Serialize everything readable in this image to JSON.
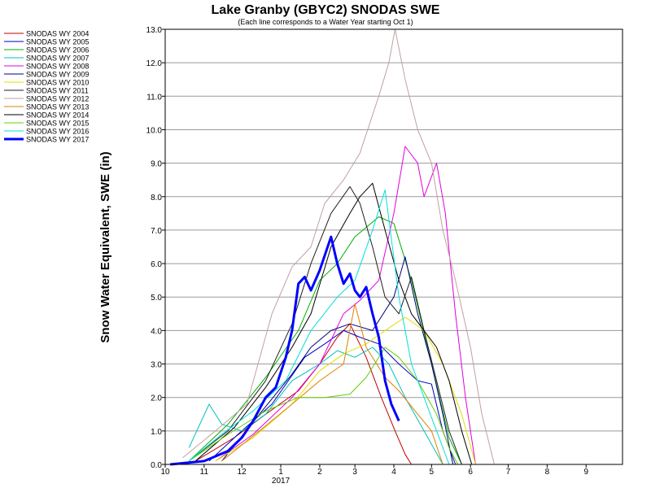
{
  "chart_data": {
    "type": "line",
    "title": "Lake Granby (GBYC2) SNODAS SWE",
    "subtitle": "(Each line corresponds to a Water Year starting Oct 1)",
    "ylabel": "Snow Water Equivalent, SWE (in)",
    "xlabel": "",
    "ylim": [
      0,
      13
    ],
    "yticks": [
      0,
      1,
      2,
      3,
      4,
      5,
      6,
      7,
      8,
      9,
      10,
      11,
      12,
      13
    ],
    "ytick_labels": [
      "0.0",
      "1.0",
      "2.0",
      "3.0",
      "4.0",
      "5.0",
      "6.0",
      "7.0",
      "8.0",
      "9.0",
      "10.0",
      "11.0",
      "12.0",
      "13.0"
    ],
    "xlim": [
      "2016-10-01",
      "2017-09-30"
    ],
    "xticks": [
      {
        "date": "2016-10-01",
        "label": "10"
      },
      {
        "date": "2016-11-01",
        "label": "11"
      },
      {
        "date": "2016-12-01",
        "label": "12"
      },
      {
        "date": "2017-01-01",
        "label": "1"
      },
      {
        "date": "2017-02-01",
        "label": "2"
      },
      {
        "date": "2017-03-01",
        "label": "3"
      },
      {
        "date": "2017-04-01",
        "label": "4"
      },
      {
        "date": "2017-05-01",
        "label": "5"
      },
      {
        "date": "2017-06-01",
        "label": "6"
      },
      {
        "date": "2017-07-01",
        "label": "7"
      },
      {
        "date": "2017-08-01",
        "label": "8"
      },
      {
        "date": "2017-09-01",
        "label": "9"
      }
    ],
    "year_label": {
      "date": "2017-01-01",
      "label": "2017"
    },
    "grid": "horizontal",
    "legend_position": "left",
    "series": [
      {
        "name": "SNODAS WY 2004",
        "color": "#c00000",
        "width": 1,
        "points": [
          [
            "2016-10-25",
            0.1
          ],
          [
            "2016-11-25",
            0.8
          ],
          [
            "2016-12-20",
            1.5
          ],
          [
            "2017-01-15",
            2.2
          ],
          [
            "2017-02-01",
            3.0
          ],
          [
            "2017-02-15",
            3.8
          ],
          [
            "2017-02-25",
            4.2
          ],
          [
            "2017-03-10",
            3.2
          ],
          [
            "2017-03-22",
            2.0
          ],
          [
            "2017-04-02",
            1.0
          ],
          [
            "2017-04-10",
            0.3
          ],
          [
            "2017-04-15",
            0.0
          ]
        ]
      },
      {
        "name": "SNODAS WY 2005",
        "color": "#0000c0",
        "width": 1,
        "points": [
          [
            "2016-11-05",
            0.1
          ],
          [
            "2016-12-01",
            1.0
          ],
          [
            "2016-12-25",
            1.8
          ],
          [
            "2017-01-20",
            3.2
          ],
          [
            "2017-02-05",
            3.6
          ],
          [
            "2017-02-20",
            4.0
          ],
          [
            "2017-03-05",
            3.8
          ],
          [
            "2017-03-20",
            3.6
          ],
          [
            "2017-04-05",
            3.0
          ],
          [
            "2017-04-20",
            2.5
          ],
          [
            "2017-05-01",
            2.4
          ],
          [
            "2017-05-10",
            1.0
          ],
          [
            "2017-05-20",
            0.0
          ]
        ]
      },
      {
        "name": "SNODAS WY 2006",
        "color": "#00b000",
        "width": 1,
        "points": [
          [
            "2016-10-20",
            0.1
          ],
          [
            "2016-11-20",
            1.2
          ],
          [
            "2016-12-20",
            2.6
          ],
          [
            "2017-01-15",
            4.0
          ],
          [
            "2017-02-01",
            5.5
          ],
          [
            "2017-02-15",
            6.0
          ],
          [
            "2017-03-01",
            6.8
          ],
          [
            "2017-03-20",
            7.4
          ],
          [
            "2017-04-01",
            7.2
          ],
          [
            "2017-04-15",
            5.5
          ],
          [
            "2017-05-01",
            3.0
          ],
          [
            "2017-05-15",
            0.8
          ],
          [
            "2017-05-25",
            0.0
          ]
        ]
      },
      {
        "name": "SNODAS WY 2007",
        "color": "#00c0c0",
        "width": 1,
        "points": [
          [
            "2016-10-20",
            0.5
          ],
          [
            "2016-11-05",
            1.8
          ],
          [
            "2016-11-15",
            1.2
          ],
          [
            "2016-12-01",
            1.0
          ],
          [
            "2016-12-20",
            1.5
          ],
          [
            "2017-01-10",
            2.5
          ],
          [
            "2017-02-01",
            3.0
          ],
          [
            "2017-02-15",
            3.4
          ],
          [
            "2017-03-01",
            3.2
          ],
          [
            "2017-03-15",
            3.5
          ],
          [
            "2017-03-28",
            3.0
          ],
          [
            "2017-04-10",
            2.0
          ],
          [
            "2017-04-25",
            1.0
          ],
          [
            "2017-05-10",
            0.0
          ]
        ]
      },
      {
        "name": "SNODAS WY 2008",
        "color": "#e000e0",
        "width": 1,
        "points": [
          [
            "2016-11-10",
            0.1
          ],
          [
            "2016-12-10",
            0.9
          ],
          [
            "2017-01-10",
            2.0
          ],
          [
            "2017-02-01",
            3.0
          ],
          [
            "2017-02-20",
            4.5
          ],
          [
            "2017-03-05",
            4.9
          ],
          [
            "2017-03-20",
            5.5
          ],
          [
            "2017-04-01",
            7.5
          ],
          [
            "2017-04-10",
            9.5
          ],
          [
            "2017-04-20",
            9.0
          ],
          [
            "2017-04-25",
            8.0
          ],
          [
            "2017-05-05",
            9.0
          ],
          [
            "2017-05-12",
            7.5
          ],
          [
            "2017-05-20",
            4.5
          ],
          [
            "2017-05-28",
            2.0
          ],
          [
            "2017-06-05",
            0.0
          ]
        ]
      },
      {
        "name": "SNODAS WY 2009",
        "color": "#000080",
        "width": 1,
        "points": [
          [
            "2016-11-15",
            0.1
          ],
          [
            "2016-12-15",
            1.5
          ],
          [
            "2017-01-10",
            2.7
          ],
          [
            "2017-01-25",
            3.5
          ],
          [
            "2017-02-10",
            4.0
          ],
          [
            "2017-02-25",
            4.2
          ],
          [
            "2017-03-15",
            4.0
          ],
          [
            "2017-04-01",
            5.0
          ],
          [
            "2017-04-10",
            6.2
          ],
          [
            "2017-04-20",
            4.5
          ],
          [
            "2017-05-01",
            3.0
          ],
          [
            "2017-05-10",
            1.5
          ],
          [
            "2017-05-18",
            0.0
          ]
        ]
      },
      {
        "name": "SNODAS WY 2010",
        "color": "#e0e000",
        "width": 1,
        "points": [
          [
            "2016-11-10",
            0.1
          ],
          [
            "2016-12-10",
            0.8
          ],
          [
            "2017-01-10",
            1.8
          ],
          [
            "2017-02-01",
            2.8
          ],
          [
            "2017-02-20",
            3.3
          ],
          [
            "2017-03-10",
            3.6
          ],
          [
            "2017-03-25",
            4.0
          ],
          [
            "2017-04-10",
            4.4
          ],
          [
            "2017-04-25",
            4.0
          ],
          [
            "2017-05-10",
            3.0
          ],
          [
            "2017-05-25",
            1.5
          ],
          [
            "2017-06-05",
            0.0
          ]
        ]
      },
      {
        "name": "SNODAS WY 2011",
        "color": "#202020",
        "width": 1,
        "points": [
          [
            "2016-10-20",
            0.1
          ],
          [
            "2016-11-20",
            1.0
          ],
          [
            "2016-12-20",
            2.5
          ],
          [
            "2017-01-10",
            4.2
          ],
          [
            "2017-01-25",
            6.0
          ],
          [
            "2017-02-10",
            7.5
          ],
          [
            "2017-02-25",
            8.3
          ],
          [
            "2017-03-05",
            7.8
          ],
          [
            "2017-03-15",
            6.5
          ],
          [
            "2017-03-25",
            5.0
          ],
          [
            "2017-04-05",
            4.5
          ],
          [
            "2017-04-15",
            5.6
          ],
          [
            "2017-04-25",
            4.0
          ],
          [
            "2017-05-05",
            2.5
          ],
          [
            "2017-05-15",
            1.0
          ],
          [
            "2017-05-25",
            0.0
          ]
        ]
      },
      {
        "name": "SNODAS WY 2012",
        "color": "#c0a0a0",
        "width": 1,
        "points": [
          [
            "2016-10-15",
            0.2
          ],
          [
            "2016-11-10",
            1.0
          ],
          [
            "2016-12-05",
            1.8
          ],
          [
            "2016-12-25",
            4.5
          ],
          [
            "2017-01-10",
            5.9
          ],
          [
            "2017-01-25",
            6.5
          ],
          [
            "2017-02-05",
            7.8
          ],
          [
            "2017-02-20",
            8.5
          ],
          [
            "2017-03-05",
            9.3
          ],
          [
            "2017-03-20",
            11.0
          ],
          [
            "2017-03-28",
            12.0
          ],
          [
            "2017-04-02",
            13.0
          ],
          [
            "2017-04-10",
            11.5
          ],
          [
            "2017-04-20",
            10.0
          ],
          [
            "2017-05-01",
            9.0
          ],
          [
            "2017-05-10",
            7.0
          ],
          [
            "2017-05-20",
            5.5
          ],
          [
            "2017-06-01",
            3.5
          ],
          [
            "2017-06-10",
            1.5
          ],
          [
            "2017-06-20",
            0.0
          ]
        ]
      },
      {
        "name": "SNODAS WY 2013",
        "color": "#e08000",
        "width": 1,
        "points": [
          [
            "2016-11-15",
            0.1
          ],
          [
            "2016-12-15",
            1.0
          ],
          [
            "2017-01-10",
            1.8
          ],
          [
            "2017-02-01",
            2.5
          ],
          [
            "2017-02-20",
            3.0
          ],
          [
            "2017-03-01",
            4.8
          ],
          [
            "2017-03-10",
            3.5
          ],
          [
            "2017-03-25",
            2.6
          ],
          [
            "2017-04-05",
            2.2
          ],
          [
            "2017-04-20",
            1.5
          ],
          [
            "2017-05-01",
            1.0
          ],
          [
            "2017-05-10",
            0.0
          ]
        ]
      },
      {
        "name": "SNODAS WY 2014",
        "color": "#000000",
        "width": 1,
        "points": [
          [
            "2016-10-25",
            0.1
          ],
          [
            "2016-11-25",
            1.1
          ],
          [
            "2016-12-20",
            2.3
          ],
          [
            "2017-01-10",
            3.5
          ],
          [
            "2017-01-25",
            4.5
          ],
          [
            "2017-02-10",
            6.5
          ],
          [
            "2017-02-25",
            7.5
          ],
          [
            "2017-03-05",
            8.0
          ],
          [
            "2017-03-15",
            8.4
          ],
          [
            "2017-03-25",
            7.0
          ],
          [
            "2017-04-05",
            5.5
          ],
          [
            "2017-04-15",
            4.5
          ],
          [
            "2017-04-25",
            4.0
          ],
          [
            "2017-05-05",
            3.5
          ],
          [
            "2017-05-15",
            2.5
          ],
          [
            "2017-05-25",
            1.0
          ],
          [
            "2017-06-02",
            0.0
          ]
        ]
      },
      {
        "name": "SNODAS WY 2015",
        "color": "#60d000",
        "width": 1,
        "points": [
          [
            "2016-10-20",
            0.1
          ],
          [
            "2016-11-20",
            0.9
          ],
          [
            "2016-12-20",
            1.6
          ],
          [
            "2017-01-15",
            2.0
          ],
          [
            "2017-02-05",
            2.0
          ],
          [
            "2017-02-25",
            2.1
          ],
          [
            "2017-03-10",
            2.6
          ],
          [
            "2017-03-25",
            3.5
          ],
          [
            "2017-04-05",
            3.2
          ],
          [
            "2017-04-20",
            2.5
          ],
          [
            "2017-05-05",
            1.5
          ],
          [
            "2017-05-15",
            0.5
          ],
          [
            "2017-05-22",
            0.0
          ]
        ]
      },
      {
        "name": "SNODAS WY 2016",
        "color": "#00e0e0",
        "width": 1,
        "points": [
          [
            "2016-10-20",
            0.1
          ],
          [
            "2016-11-15",
            0.9
          ],
          [
            "2016-12-10",
            1.6
          ],
          [
            "2017-01-05",
            2.5
          ],
          [
            "2017-01-25",
            4.0
          ],
          [
            "2017-02-15",
            5.0
          ],
          [
            "2017-03-01",
            5.5
          ],
          [
            "2017-03-15",
            7.0
          ],
          [
            "2017-03-25",
            8.2
          ],
          [
            "2017-04-05",
            5.0
          ],
          [
            "2017-04-15",
            3.0
          ],
          [
            "2017-04-25",
            2.0
          ],
          [
            "2017-05-05",
            1.0
          ],
          [
            "2017-05-15",
            0.0
          ]
        ]
      },
      {
        "name": "SNODAS WY 2017",
        "color": "#0000ff",
        "width": 3,
        "points": [
          [
            "2016-10-05",
            0.0
          ],
          [
            "2016-11-01",
            0.1
          ],
          [
            "2016-11-20",
            0.4
          ],
          [
            "2016-12-01",
            0.8
          ],
          [
            "2016-12-10",
            1.3
          ],
          [
            "2016-12-20",
            2.0
          ],
          [
            "2016-12-28",
            2.3
          ],
          [
            "2017-01-05",
            3.2
          ],
          [
            "2017-01-10",
            4.0
          ],
          [
            "2017-01-15",
            5.4
          ],
          [
            "2017-01-20",
            5.6
          ],
          [
            "2017-01-25",
            5.2
          ],
          [
            "2017-02-01",
            5.8
          ],
          [
            "2017-02-10",
            6.8
          ],
          [
            "2017-02-15",
            6.0
          ],
          [
            "2017-02-20",
            5.4
          ],
          [
            "2017-02-25",
            5.7
          ],
          [
            "2017-03-01",
            5.2
          ],
          [
            "2017-03-05",
            5.0
          ],
          [
            "2017-03-10",
            5.3
          ],
          [
            "2017-03-15",
            4.5
          ],
          [
            "2017-03-20",
            3.8
          ],
          [
            "2017-03-25",
            2.5
          ],
          [
            "2017-03-30",
            1.8
          ],
          [
            "2017-04-05",
            1.3
          ]
        ]
      }
    ]
  }
}
